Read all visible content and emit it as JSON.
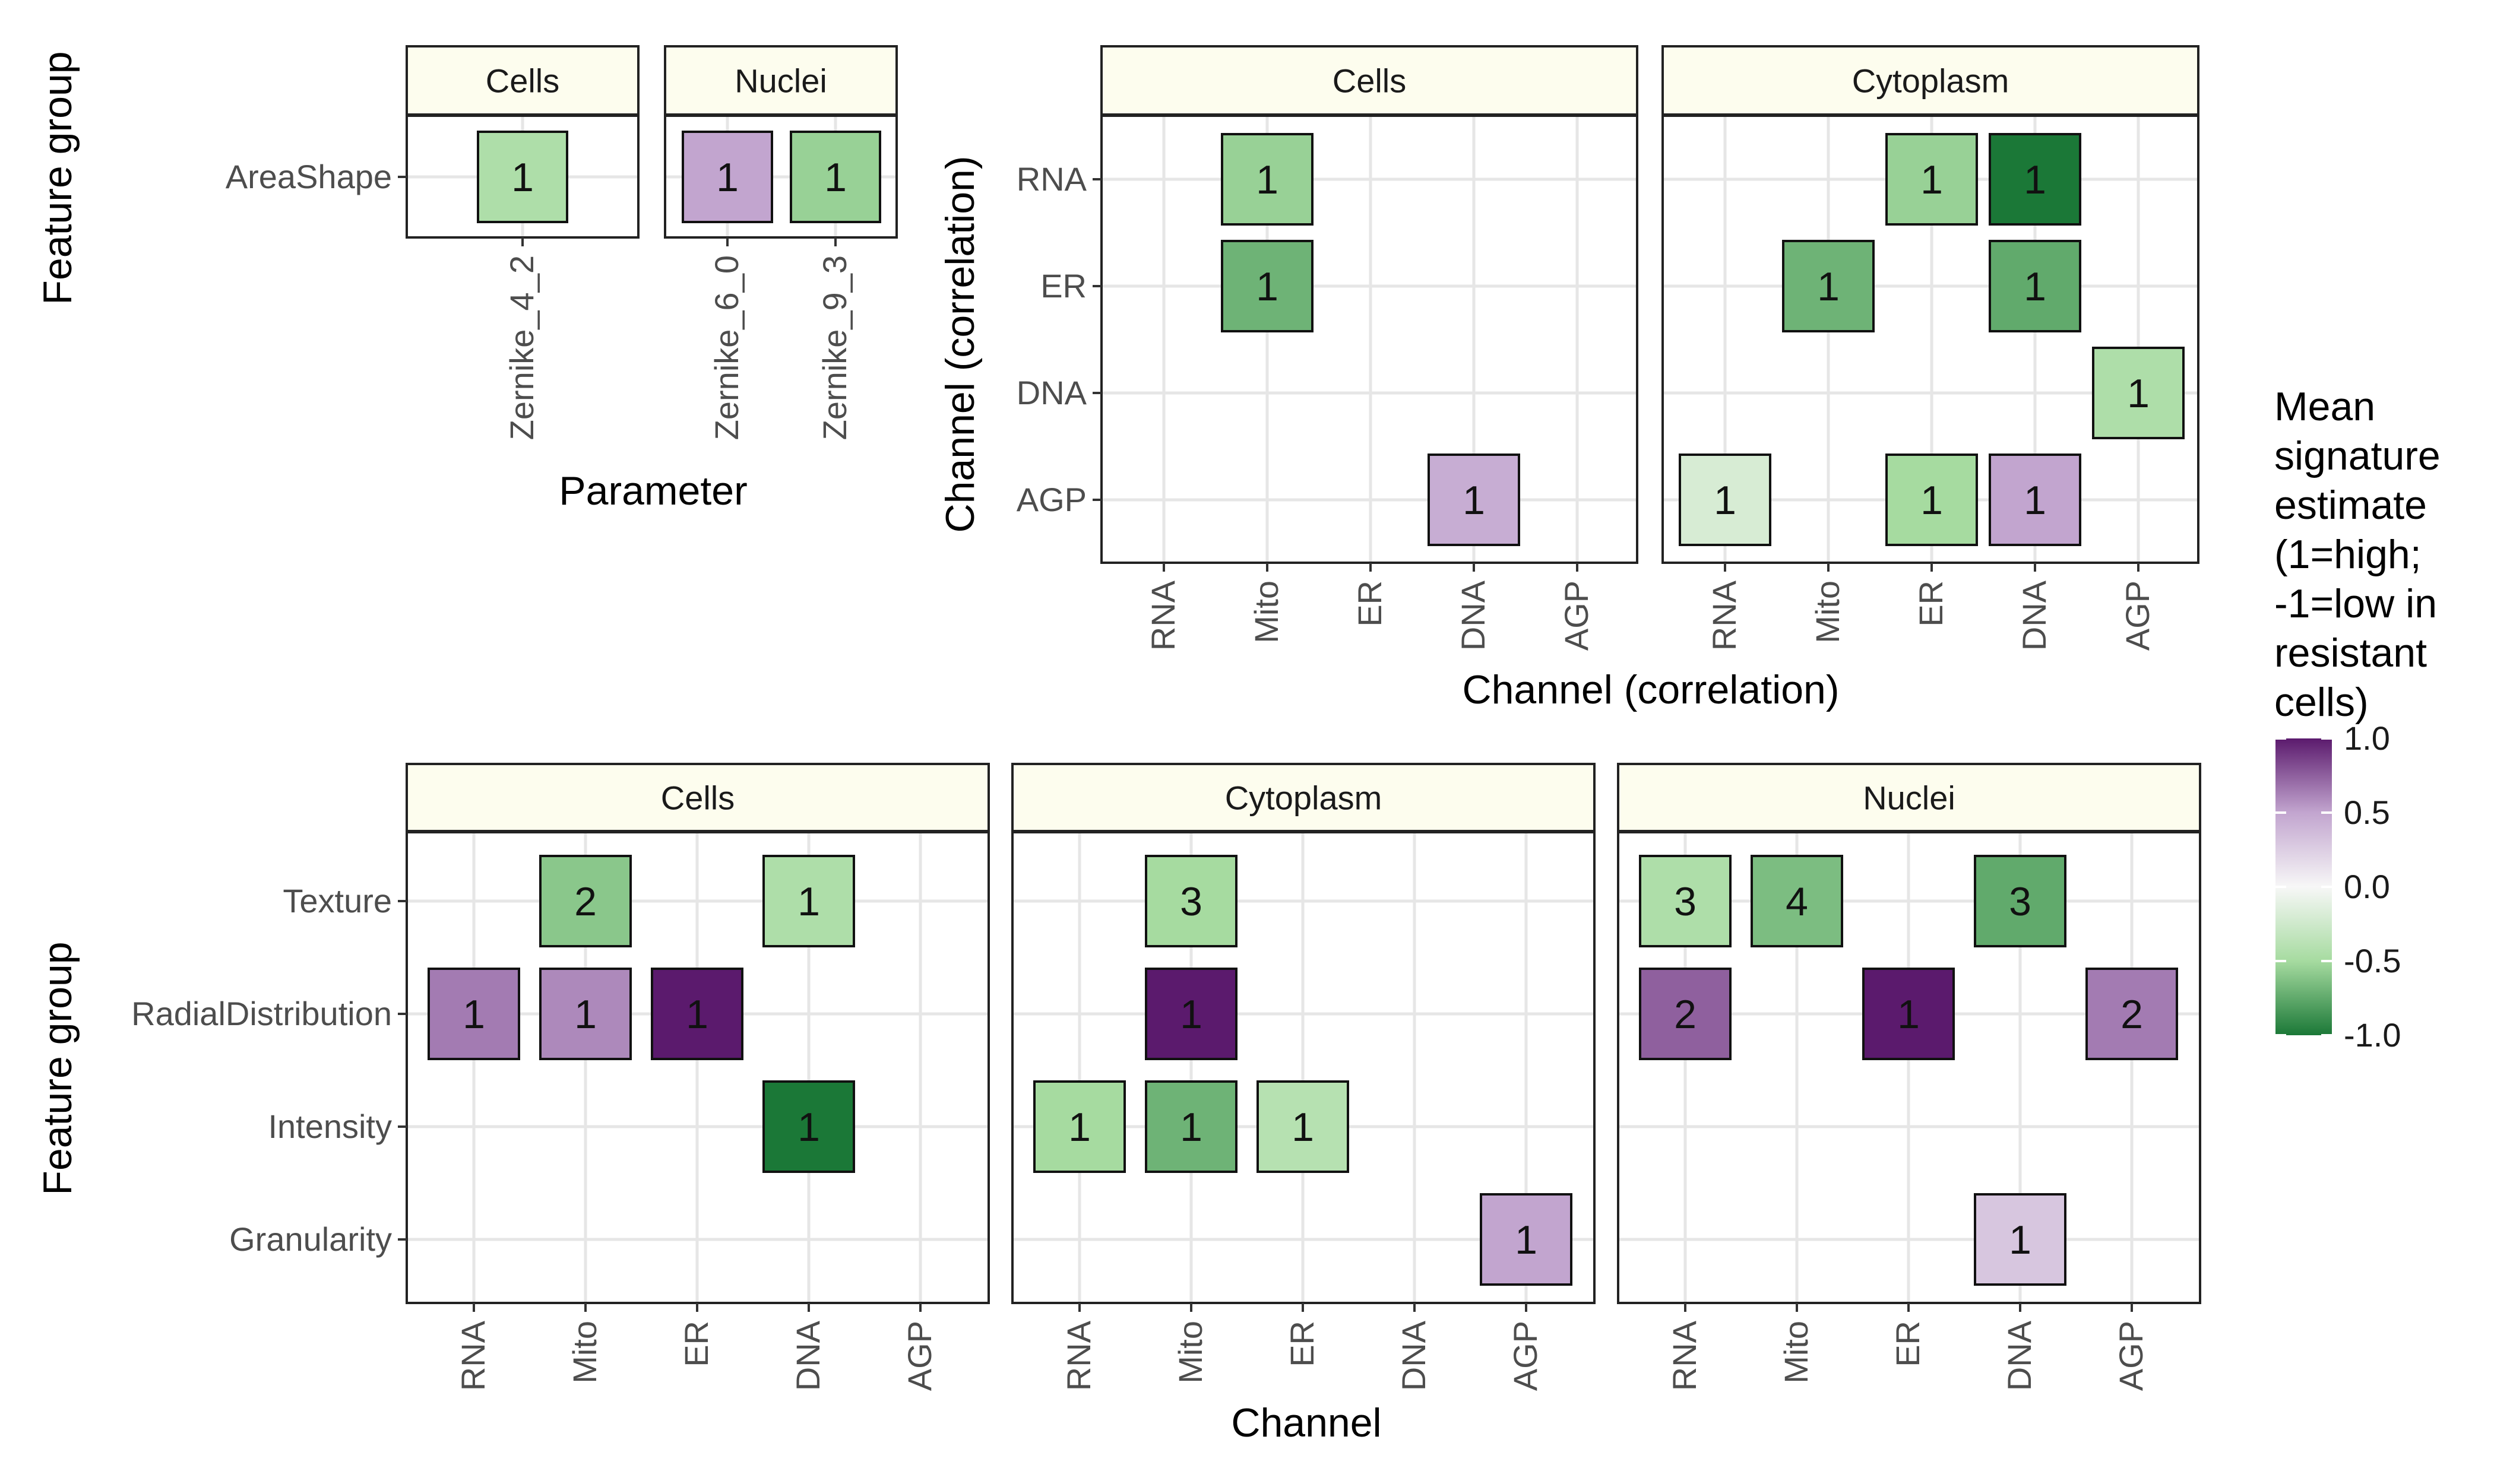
{
  "figure": {
    "legend": {
      "title_lines": [
        "Mean",
        "signature",
        "estimate",
        "(1=high;",
        "-1=low in",
        "resistant",
        "cells)"
      ],
      "ticks": [
        "1.0",
        "0.5",
        "0.0",
        "-0.5",
        "-1.0"
      ],
      "tick_values": [
        1.0,
        0.5,
        0.0,
        -0.5,
        -1.0
      ],
      "colors": {
        "high": "#5b1a6d",
        "mid_high": "#c2a5cf",
        "zero": "#f7f7f7",
        "mid_low": "#a6dba0",
        "low": "#1b7837"
      }
    }
  },
  "chart_data": [
    {
      "type": "heatmap",
      "position": "top-left",
      "ylabel": "Feature group",
      "xlabel": "Parameter",
      "facets": [
        {
          "name": "Cells",
          "x_categories": [
            "Zernike_4_2"
          ],
          "y_categories": [
            "AreaShape"
          ],
          "cells": [
            {
              "x": "Zernike_4_2",
              "y": "AreaShape",
              "label": "1",
              "value": -0.45
            }
          ]
        },
        {
          "name": "Nuclei",
          "x_categories": [
            "Zernike_6_0",
            "Zernike_9_3"
          ],
          "y_categories": [
            "AreaShape"
          ],
          "cells": [
            {
              "x": "Zernike_6_0",
              "y": "AreaShape",
              "label": "1",
              "value": 0.5
            },
            {
              "x": "Zernike_9_3",
              "y": "AreaShape",
              "label": "1",
              "value": -0.55
            }
          ]
        }
      ]
    },
    {
      "type": "heatmap",
      "position": "top-right",
      "ylabel": "Channel (correlation)",
      "xlabel": "Channel (correlation)",
      "x_categories": [
        "RNA",
        "Mito",
        "ER",
        "DNA",
        "AGP"
      ],
      "y_categories": [
        "RNA",
        "ER",
        "DNA",
        "AGP"
      ],
      "facets": [
        {
          "name": "Cells",
          "cells": [
            {
              "x": "Mito",
              "y": "RNA",
              "label": "1",
              "value": -0.55
            },
            {
              "x": "Mito",
              "y": "ER",
              "label": "1",
              "value": -0.7
            },
            {
              "x": "DNA",
              "y": "AGP",
              "label": "1",
              "value": 0.45
            }
          ]
        },
        {
          "name": "Cytoplasm",
          "cells": [
            {
              "x": "ER",
              "y": "RNA",
              "label": "1",
              "value": -0.55
            },
            {
              "x": "DNA",
              "y": "RNA",
              "label": "1",
              "value": -1.0
            },
            {
              "x": "Mito",
              "y": "ER",
              "label": "1",
              "value": -0.7
            },
            {
              "x": "DNA",
              "y": "ER",
              "label": "1",
              "value": -0.75
            },
            {
              "x": "AGP",
              "y": "DNA",
              "label": "1",
              "value": -0.45
            },
            {
              "x": "RNA",
              "y": "AGP",
              "label": "1",
              "value": -0.2
            },
            {
              "x": "ER",
              "y": "AGP",
              "label": "1",
              "value": -0.5
            },
            {
              "x": "DNA",
              "y": "AGP",
              "label": "1",
              "value": 0.5
            }
          ]
        }
      ]
    },
    {
      "type": "heatmap",
      "position": "bottom",
      "ylabel": "Feature group",
      "xlabel": "Channel",
      "x_categories": [
        "RNA",
        "Mito",
        "ER",
        "DNA",
        "AGP"
      ],
      "y_categories": [
        "Texture",
        "RadialDistribution",
        "Intensity",
        "Granularity"
      ],
      "facets": [
        {
          "name": "Cells",
          "cells": [
            {
              "x": "Mito",
              "y": "Texture",
              "label": "2",
              "value": -0.6
            },
            {
              "x": "DNA",
              "y": "Texture",
              "label": "1",
              "value": -0.45
            },
            {
              "x": "RNA",
              "y": "RadialDistribution",
              "label": "1",
              "value": 0.65
            },
            {
              "x": "Mito",
              "y": "RadialDistribution",
              "label": "1",
              "value": 0.6
            },
            {
              "x": "ER",
              "y": "RadialDistribution",
              "label": "1",
              "value": 1.0
            },
            {
              "x": "DNA",
              "y": "Intensity",
              "label": "1",
              "value": -1.0
            }
          ]
        },
        {
          "name": "Cytoplasm",
          "cells": [
            {
              "x": "Mito",
              "y": "Texture",
              "label": "3",
              "value": -0.5
            },
            {
              "x": "Mito",
              "y": "RadialDistribution",
              "label": "1",
              "value": 1.0
            },
            {
              "x": "RNA",
              "y": "Intensity",
              "label": "1",
              "value": -0.5
            },
            {
              "x": "Mito",
              "y": "Intensity",
              "label": "1",
              "value": -0.7
            },
            {
              "x": "ER",
              "y": "Intensity",
              "label": "1",
              "value": -0.4
            },
            {
              "x": "AGP",
              "y": "Granularity",
              "label": "1",
              "value": 0.5
            }
          ]
        },
        {
          "name": "Nuclei",
          "cells": [
            {
              "x": "RNA",
              "y": "Texture",
              "label": "3",
              "value": -0.45
            },
            {
              "x": "Mito",
              "y": "Texture",
              "label": "4",
              "value": -0.65
            },
            {
              "x": "DNA",
              "y": "Texture",
              "label": "3",
              "value": -0.75
            },
            {
              "x": "RNA",
              "y": "RadialDistribution",
              "label": "2",
              "value": 0.75
            },
            {
              "x": "ER",
              "y": "RadialDistribution",
              "label": "1",
              "value": 1.0
            },
            {
              "x": "AGP",
              "y": "RadialDistribution",
              "label": "2",
              "value": 0.65
            },
            {
              "x": "DNA",
              "y": "Granularity",
              "label": "1",
              "value": 0.3
            }
          ]
        }
      ]
    }
  ]
}
